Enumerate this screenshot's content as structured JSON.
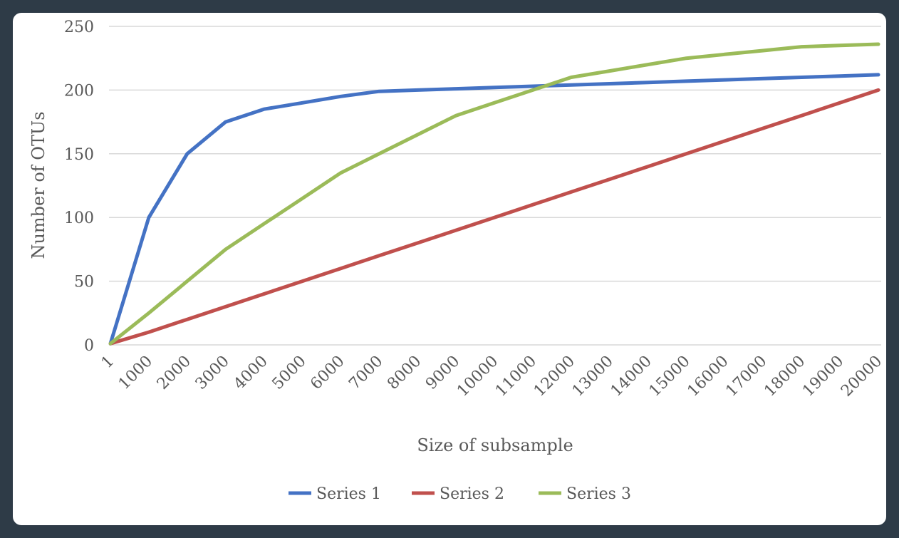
{
  "chart_data": {
    "type": "line",
    "title": "",
    "xlabel": "Size of subsample",
    "ylabel": "Number of OTUs",
    "categories": [
      "1",
      "1000",
      "2000",
      "3000",
      "4000",
      "5000",
      "6000",
      "7000",
      "8000",
      "9000",
      "10000",
      "11000",
      "12000",
      "13000",
      "14000",
      "15000",
      "16000",
      "17000",
      "18000",
      "19000",
      "20000"
    ],
    "ylim": [
      0,
      250
    ],
    "yticks": [
      0,
      50,
      100,
      150,
      200,
      250
    ],
    "grid": true,
    "legend_position": "bottom",
    "series": [
      {
        "name": "Series 1",
        "color": "#4472c4",
        "values": [
          1,
          100,
          150,
          175,
          185,
          190,
          195,
          199,
          200,
          201,
          202,
          203,
          204,
          205,
          206,
          207,
          208,
          209,
          210,
          211,
          212
        ]
      },
      {
        "name": "Series 2",
        "color": "#c0504d",
        "values": [
          1,
          10,
          20,
          30,
          40,
          50,
          60,
          70,
          80,
          90,
          100,
          110,
          120,
          130,
          140,
          150,
          160,
          170,
          180,
          190,
          200
        ]
      },
      {
        "name": "Series 3",
        "color": "#9bbb59",
        "values": [
          1,
          25,
          50,
          75,
          95,
          115,
          135,
          150,
          165,
          180,
          190,
          200,
          210,
          215,
          220,
          225,
          228,
          231,
          234,
          235,
          236
        ]
      }
    ]
  }
}
